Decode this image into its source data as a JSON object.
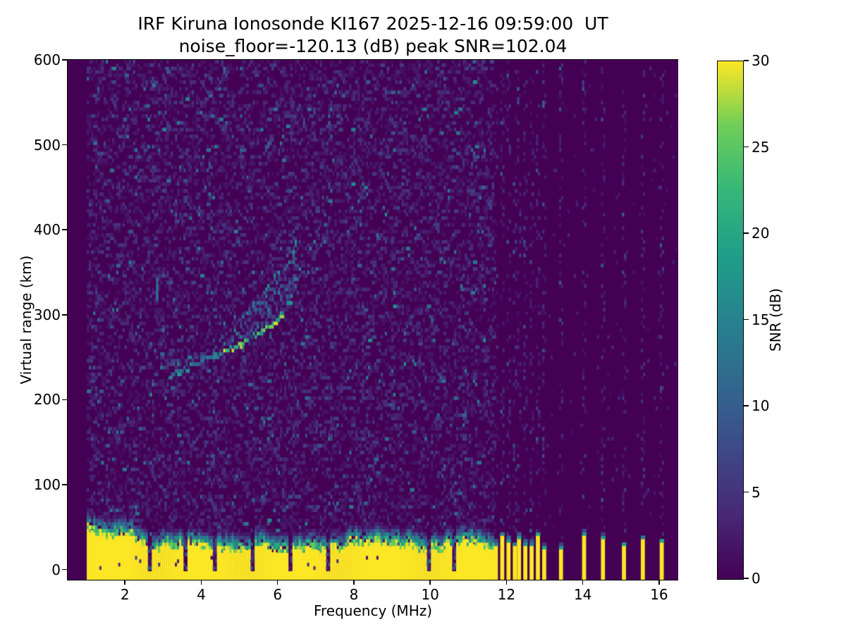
{
  "figure_title": {
    "line1": "IRF Kiruna Ionosonde KI167 2025-12-16 09:59:00  UT",
    "line2": "noise_floor=-120.13 (dB) peak SNR=102.04"
  },
  "chart_data": {
    "type": "heatmap",
    "title": "IRF Kiruna Ionosonde KI167 2025-12-16 09:59:00  UT",
    "subtitle": "noise_floor=-120.13 (dB) peak SNR=102.04",
    "xlabel": "Frequency (MHz)",
    "ylabel": "Virtual range (km)",
    "xlim": [
      0.5,
      16.5
    ],
    "ylim": [
      -12,
      600
    ],
    "xticks": [
      2,
      4,
      6,
      8,
      10,
      12,
      14,
      16
    ],
    "yticks": [
      0,
      100,
      200,
      300,
      400,
      500,
      600
    ],
    "grid": false,
    "colormap": "viridis",
    "noise_floor_db": -120.13,
    "peak_snr_db": 102.04,
    "colorbar": {
      "label": "SNR (dB)",
      "vmin": 0,
      "vmax": 30,
      "ticks": [
        0,
        5,
        10,
        15,
        20,
        25,
        30
      ],
      "position": "right"
    },
    "sounding_freq_range_mhz": [
      1.0,
      16.42
    ],
    "ground_clutter_band": {
      "freq_span_mhz": [
        1.0,
        11.62
      ],
      "top_km_mean": 35,
      "top_km_min": 26,
      "top_km_max": 50,
      "fringe_km": 16,
      "snr_db": 30,
      "notch_freqs_mhz": [
        2.65,
        3.58,
        4.35,
        5.3,
        6.28,
        7.28,
        9.92,
        10.58
      ]
    },
    "rfi_stripes": {
      "dense_from_mhz": 11.66,
      "dense_to_mhz": 12.95,
      "dense_step_mhz": 0.16,
      "isolated_mhz": [
        13.4,
        14.0,
        14.5,
        15.0,
        15.5,
        16.0
      ],
      "stripe_top_km_range": [
        26,
        44
      ],
      "snr_db": 30
    },
    "echo_trace": {
      "main_points_mhz_km": [
        [
          3.2,
          231
        ],
        [
          3.6,
          238
        ],
        [
          4.0,
          245
        ],
        [
          4.4,
          252
        ],
        [
          4.8,
          261
        ],
        [
          5.2,
          270
        ],
        [
          5.6,
          281
        ],
        [
          5.9,
          291
        ],
        [
          6.1,
          300
        ],
        [
          6.3,
          316
        ],
        [
          6.45,
          340
        ]
      ],
      "bright_freq_span_mhz": [
        4.55,
        6.1
      ],
      "bright_snr_db_range": [
        18,
        30
      ],
      "upper_branch_points_mhz_km": [
        [
          5.0,
          298
        ],
        [
          5.4,
          308
        ],
        [
          5.9,
          322
        ],
        [
          6.3,
          338
        ],
        [
          6.6,
          352
        ]
      ],
      "tail_points_mhz_km": [
        [
          6.5,
          302
        ],
        [
          6.7,
          330
        ],
        [
          6.85,
          355
        ],
        [
          7.0,
          378
        ],
        [
          7.15,
          402
        ],
        [
          7.3,
          428
        ],
        [
          7.4,
          452
        ]
      ],
      "isolated_streak": {
        "freq_mhz": 2.8,
        "km_span": [
          318,
          342
        ],
        "snr_db": 12
      },
      "diffuse_snr_db_range": [
        4,
        18
      ]
    },
    "background_noise": {
      "snr_db_range": [
        0,
        9
      ],
      "speckle_density": 0.42
    }
  }
}
